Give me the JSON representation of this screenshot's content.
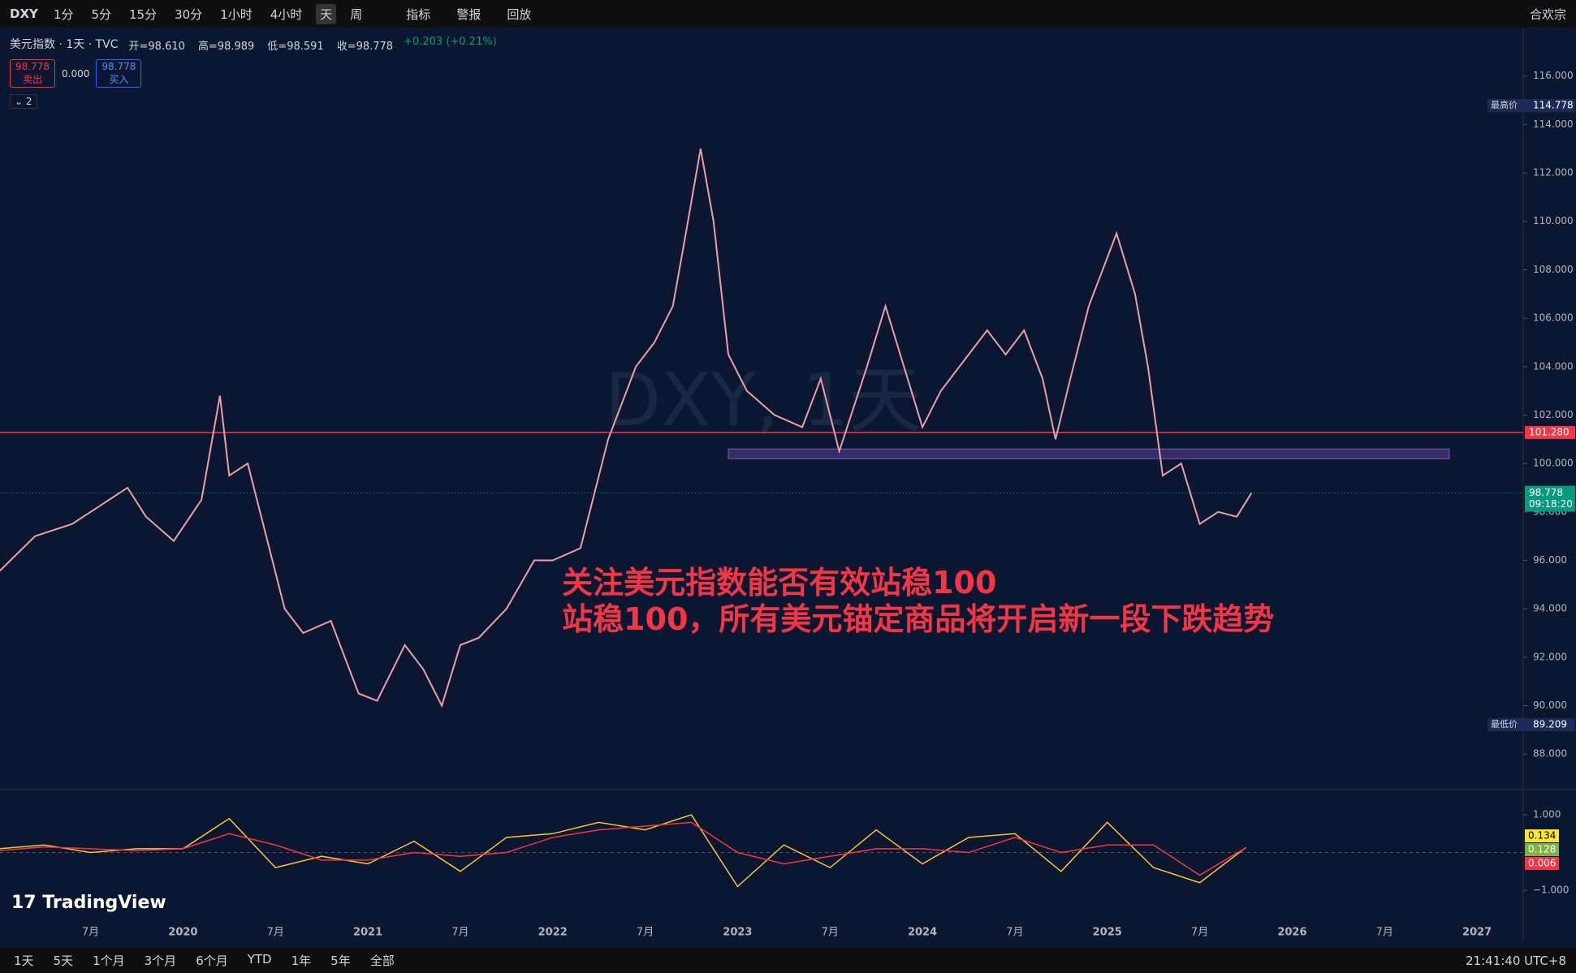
{
  "toolbar": {
    "symbol": "DXY",
    "intervals": [
      "1分",
      "5分",
      "15分",
      "30分",
      "1小时",
      "4小时",
      "天",
      "周"
    ],
    "buttons": [
      "指标",
      "警报",
      "回放"
    ],
    "account": "合欢宗"
  },
  "legend": {
    "name": "美元指数 · 1天 · TVC",
    "ohlc": [
      "开=98.610",
      "高=98.989",
      "低=98.591",
      "收=98.778"
    ],
    "change": "+0.203 (+0.21%)",
    "sell_price": "98.778",
    "sell": "卖出",
    "spread": "0.000",
    "buy_price": "98.778",
    "buy": "买入",
    "collapsed": "2"
  },
  "watermark": "DXY, 1天",
  "logo": "TradingView",
  "bottom_bar": {
    "ranges": [
      "1天",
      "5天",
      "1个月",
      "3个月",
      "6个月",
      "YTD",
      "1年",
      "5年",
      "全部"
    ],
    "clock": "21:41:40 UTC+8"
  },
  "chart_data": {
    "type": "line",
    "annotation": [
      "关注美元指数能否有效站稳100",
      "站稳100，所有美元锚定商品将开启新一段下跌趋势"
    ],
    "x": [
      2019.0,
      2019.2,
      2019.4,
      2019.6,
      2019.7,
      2019.8,
      2019.95,
      2020.1,
      2020.2,
      2020.25,
      2020.35,
      2020.45,
      2020.55,
      2020.65,
      2020.8,
      2020.95,
      2021.05,
      2021.2,
      2021.3,
      2021.4,
      2021.5,
      2021.6,
      2021.75,
      2021.9,
      2022.0,
      2022.15,
      2022.3,
      2022.45,
      2022.55,
      2022.65,
      2022.72,
      2022.8,
      2022.87,
      2022.95,
      2023.05,
      2023.2,
      2023.35,
      2023.45,
      2023.55,
      2023.7,
      2023.8,
      2023.9,
      2024.0,
      2024.1,
      2024.25,
      2024.35,
      2024.45,
      2024.55,
      2024.65,
      2024.72,
      2024.8,
      2024.9,
      2025.0,
      2025.05,
      2025.15,
      2025.22,
      2025.3,
      2025.4,
      2025.5,
      2025.6,
      2025.7,
      2025.78
    ],
    "series": [
      {
        "name": "DXY",
        "color": "#e8a0a8",
        "values": [
          95.5,
          97,
          97.5,
          98.5,
          99,
          97.8,
          96.8,
          98.5,
          102.8,
          99.5,
          100,
          97,
          94,
          93,
          93.5,
          90.5,
          90.2,
          92.5,
          91.5,
          90,
          92.5,
          92.8,
          94,
          96,
          96,
          96.5,
          101,
          104,
          105,
          106.5,
          109.5,
          113,
          110,
          104.5,
          103,
          102,
          101.5,
          103.5,
          100.5,
          104,
          106.5,
          104,
          101.5,
          103,
          104.5,
          105.5,
          104.5,
          105.5,
          103.5,
          101,
          103.5,
          106.5,
          108.5,
          109.5,
          107,
          104,
          99.5,
          100,
          97.5,
          98,
          97.8,
          98.778
        ]
      }
    ],
    "xlim": [
      2019.01,
      2027.25
    ],
    "ylim": [
      86.7,
      118
    ],
    "xticks": [
      {
        "value": 2019.5,
        "label": "7月"
      },
      2020,
      {
        "value": 2020.5,
        "label": "7月"
      },
      2021,
      {
        "value": 2021.5,
        "label": "7月"
      },
      2022,
      {
        "value": 2022.5,
        "label": "7月"
      },
      2023,
      {
        "value": 2023.5,
        "label": "7月"
      },
      2024,
      {
        "value": 2024.5,
        "label": "7月"
      },
      2025,
      {
        "value": 2025.5,
        "label": "7月"
      },
      2026,
      {
        "value": 2026.5,
        "label": "7月"
      },
      2027
    ],
    "yticks": [
      {
        "value": 88,
        "label": "88.000"
      },
      {
        "value": 90,
        "label": "90.000"
      },
      {
        "value": 92,
        "label": "92.000"
      },
      {
        "value": 94,
        "label": "94.000"
      },
      {
        "value": 96,
        "label": "96.000"
      },
      {
        "value": 98,
        "label": "98.000"
      },
      {
        "value": 100,
        "label": "100.000"
      },
      {
        "value": 102,
        "label": "102.000"
      },
      {
        "value": 104,
        "label": "104.000"
      },
      {
        "value": 106,
        "label": "106.000"
      },
      {
        "value": 108,
        "label": "108.000"
      },
      {
        "value": 110,
        "label": "110.000"
      },
      {
        "value": 112,
        "label": "112.000"
      },
      {
        "value": 114,
        "label": "114.000"
      },
      {
        "value": 116,
        "label": "116.000"
      }
    ],
    "hline": {
      "value": 101.28,
      "label": "101.280",
      "color": "#f23645"
    },
    "zone": {
      "xlim": [
        2022.95,
        2026.85
      ],
      "ylim": [
        100.2,
        100.6
      ],
      "color": "#7e57c2"
    },
    "high": {
      "label": "最高价",
      "value": 114.778
    },
    "low": {
      "label": "最低价",
      "value": 89.209
    },
    "last": {
      "value": 98.778,
      "countdown": "09:18:20",
      "color": "#089981"
    },
    "oscillator": {
      "x": [
        2019.0,
        2019.25,
        2019.5,
        2019.75,
        2020.0,
        2020.25,
        2020.5,
        2020.75,
        2021.0,
        2021.25,
        2021.5,
        2021.75,
        2022.0,
        2022.25,
        2022.5,
        2022.75,
        2023.0,
        2023.25,
        2023.5,
        2023.75,
        2024.0,
        2024.25,
        2024.5,
        2024.75,
        2025.0,
        2025.25,
        2025.5,
        2025.75
      ],
      "ylim": [
        -1.73,
        1.56
      ],
      "yticks": [
        {
          "value": 1,
          "label": "1.000"
        },
        {
          "value": -1,
          "label": "−1.000"
        }
      ],
      "series": [
        {
          "name": "fast",
          "color": "#f7c43a",
          "values": [
            0.1,
            0.2,
            0,
            0.1,
            0.1,
            0.9,
            -0.4,
            -0.1,
            -0.3,
            0.3,
            -0.5,
            0.4,
            0.5,
            0.8,
            0.6,
            1,
            -0.9,
            0.2,
            -0.4,
            0.6,
            -0.3,
            0.4,
            0.5,
            -0.5,
            0.8,
            -0.4,
            -0.8,
            0.134
          ]
        },
        {
          "name": "slow",
          "color": "#f23645",
          "values": [
            0.05,
            0.15,
            0.1,
            0.05,
            0.1,
            0.5,
            0.2,
            -0.2,
            -0.2,
            0,
            -0.1,
            0,
            0.4,
            0.6,
            0.7,
            0.8,
            0,
            -0.3,
            -0.1,
            0.1,
            0.1,
            0,
            0.4,
            0,
            0.2,
            0.2,
            -0.6,
            0.128
          ]
        }
      ],
      "labels": [
        {
          "value": 0.134,
          "color": "#f7e733"
        },
        {
          "value": 0.128,
          "color": "#7cb342"
        },
        {
          "value": 0.006,
          "color": "#f23645"
        }
      ]
    }
  }
}
